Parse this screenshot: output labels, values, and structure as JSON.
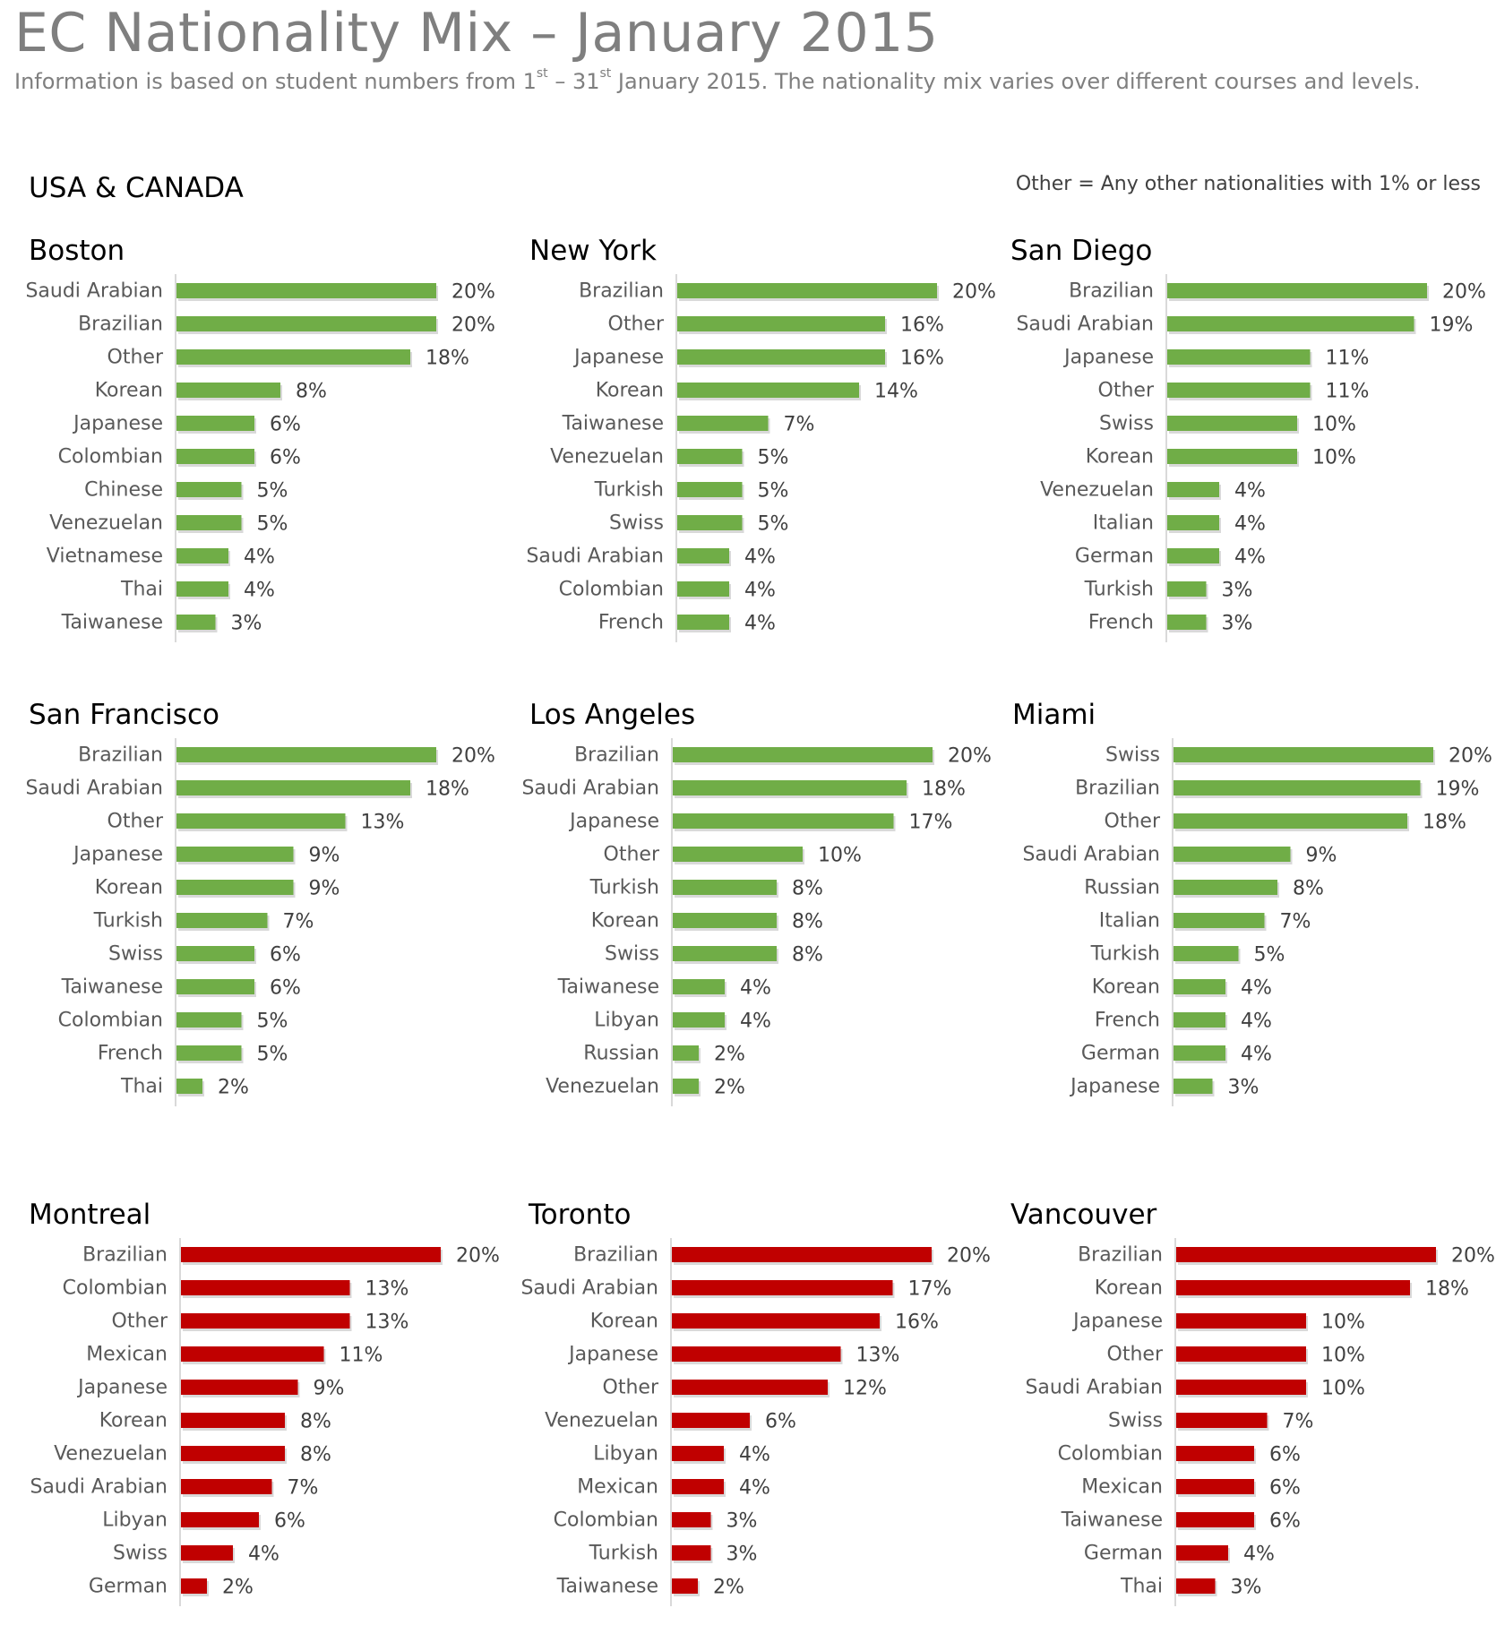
{
  "title": "EC Nationality Mix – January 2015",
  "subtitle": {
    "part1": "Information is based on student numbers from 1",
    "sup1": "st",
    "part2": " – 31",
    "sup2": "st",
    "part3": " January 2015. The nationality mix varies over different courses and levels."
  },
  "region": "USA & CANADA",
  "note": "Other = Any other nationalities with 1% or less",
  "colors": {
    "usa": "#70ad47",
    "canada": "#c00000",
    "axis": "#d9d9d9"
  },
  "chart_data": [
    {
      "type": "bar",
      "title": "Boston",
      "group": "usa",
      "categories": [
        "Saudi Arabian",
        "Brazilian",
        "Other",
        "Korean",
        "Japanese",
        "Colombian",
        "Chinese",
        "Venezuelan",
        "Vietnamese",
        "Thai",
        "Taiwanese"
      ],
      "values": [
        20,
        20,
        18,
        8,
        6,
        6,
        5,
        5,
        4,
        4,
        3
      ],
      "labels": [
        "20%",
        "20%",
        "18%",
        "8%",
        "6%",
        "6%",
        "5%",
        "5%",
        "4%",
        "4%",
        "3%"
      ]
    },
    {
      "type": "bar",
      "title": "New York",
      "group": "usa",
      "categories": [
        "Brazilian",
        "Other",
        "Japanese",
        "Korean",
        "Taiwanese",
        "Venezuelan",
        "Turkish",
        "Swiss",
        "Saudi Arabian",
        "Colombian",
        "French"
      ],
      "values": [
        20,
        16,
        16,
        14,
        7,
        5,
        5,
        5,
        4,
        4,
        4
      ],
      "labels": [
        "20%",
        "16%",
        "16%",
        "14%",
        "7%",
        "5%",
        "5%",
        "5%",
        "4%",
        "4%",
        "4%"
      ]
    },
    {
      "type": "bar",
      "title": "San Diego",
      "group": "usa",
      "categories": [
        "Brazilian",
        "Saudi Arabian",
        "Japanese",
        "Other",
        "Swiss",
        "Korean",
        "Venezuelan",
        "Italian",
        "German",
        "Turkish",
        "French"
      ],
      "values": [
        20,
        19,
        11,
        11,
        10,
        10,
        4,
        4,
        4,
        3,
        3
      ],
      "labels": [
        "20%",
        "19%",
        "11%",
        "11%",
        "10%",
        "10%",
        "4%",
        "4%",
        "4%",
        "3%",
        "3%"
      ]
    },
    {
      "type": "bar",
      "title": "San Francisco",
      "group": "usa",
      "categories": [
        "Brazilian",
        "Saudi Arabian",
        "Other",
        "Japanese",
        "Korean",
        "Turkish",
        "Swiss",
        "Taiwanese",
        "Colombian",
        "French",
        "Thai"
      ],
      "values": [
        20,
        18,
        13,
        9,
        9,
        7,
        6,
        6,
        5,
        5,
        2
      ],
      "labels": [
        "20%",
        "18%",
        "13%",
        "9%",
        "9%",
        "7%",
        "6%",
        "6%",
        "5%",
        "5%",
        "2%"
      ]
    },
    {
      "type": "bar",
      "title": "Los Angeles",
      "group": "usa",
      "categories": [
        "Brazilian",
        "Saudi Arabian",
        "Japanese",
        "Other",
        "Turkish",
        "Korean",
        "Swiss",
        "Taiwanese",
        "Libyan",
        "Russian",
        "Venezuelan"
      ],
      "values": [
        20,
        18,
        17,
        10,
        8,
        8,
        8,
        4,
        4,
        2,
        2
      ],
      "labels": [
        "20%",
        "18%",
        "17%",
        "10%",
        "8%",
        "8%",
        "8%",
        "4%",
        "4%",
        "2%",
        "2%"
      ]
    },
    {
      "type": "bar",
      "title": "Miami",
      "group": "usa",
      "categories": [
        "Swiss",
        "Brazilian",
        "Other",
        "Saudi Arabian",
        "Russian",
        "Italian",
        "Turkish",
        "Korean",
        "French",
        "German",
        "Japanese"
      ],
      "values": [
        20,
        19,
        18,
        9,
        8,
        7,
        5,
        4,
        4,
        4,
        3
      ],
      "labels": [
        "20%",
        "19%",
        "18%",
        "9%",
        "8%",
        "7%",
        "5%",
        "4%",
        "4%",
        "4%",
        "3%"
      ]
    },
    {
      "type": "bar",
      "title": "Montreal",
      "group": "canada",
      "categories": [
        "Brazilian",
        "Colombian",
        "Other",
        "Mexican",
        "Japanese",
        "Korean",
        "Venezuelan",
        "Saudi Arabian",
        "Libyan",
        "Swiss",
        "German"
      ],
      "values": [
        20,
        13,
        13,
        11,
        9,
        8,
        8,
        7,
        6,
        4,
        2
      ],
      "labels": [
        "20%",
        "13%",
        "13%",
        "11%",
        "9%",
        "8%",
        "8%",
        "7%",
        "6%",
        "4%",
        "2%"
      ]
    },
    {
      "type": "bar",
      "title": "Toronto",
      "group": "canada",
      "categories": [
        "Brazilian",
        "Saudi Arabian",
        "Korean",
        "Japanese",
        "Other",
        "Venezuelan",
        "Libyan",
        "Mexican",
        "Colombian",
        "Turkish",
        "Taiwanese"
      ],
      "values": [
        20,
        17,
        16,
        13,
        12,
        6,
        4,
        4,
        3,
        3,
        2
      ],
      "labels": [
        "20%",
        "17%",
        "16%",
        "13%",
        "12%",
        "6%",
        "4%",
        "4%",
        "3%",
        "3%",
        "2%"
      ]
    },
    {
      "type": "bar",
      "title": "Vancouver",
      "group": "canada",
      "categories": [
        "Brazilian",
        "Korean",
        "Japanese",
        "Other",
        "Saudi Arabian",
        "Swiss",
        "Colombian",
        "Mexican",
        "Taiwanese",
        "German",
        "Thai"
      ],
      "values": [
        20,
        18,
        10,
        10,
        10,
        7,
        6,
        6,
        6,
        4,
        3
      ],
      "labels": [
        "20%",
        "18%",
        "10%",
        "10%",
        "10%",
        "7%",
        "6%",
        "6%",
        "6%",
        "4%",
        "3%"
      ]
    }
  ]
}
